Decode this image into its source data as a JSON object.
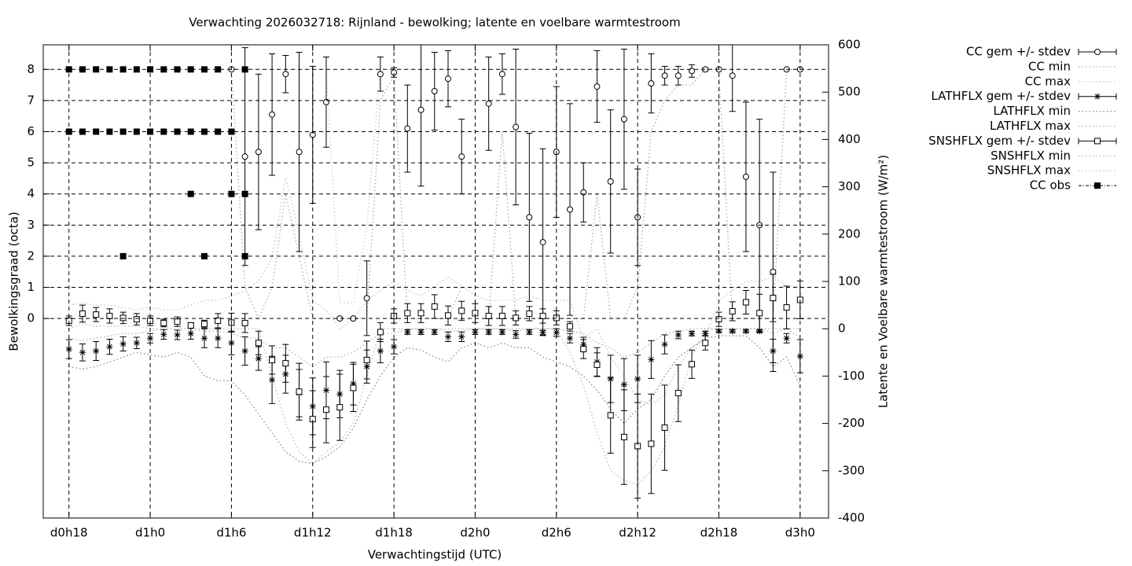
{
  "chart_data": {
    "type": "errorbar",
    "title": "Verwachting 2026032718: Rijnland - bewolking; latente en voelbare warmtestroom",
    "xlabel": "Verwachtingstijd (UTC)",
    "ylabel": "Bewolkingsgraad (octa)",
    "y2label": "Latente en Voelbare warmtestroom (W/m²)",
    "grid": true,
    "legend": "right",
    "xlim": [
      16.1,
      74.1
    ],
    "xticks": [
      {
        "value": 18,
        "label": "d0h18"
      },
      {
        "value": 24,
        "label": "d1h0"
      },
      {
        "value": 30,
        "label": "d1h6"
      },
      {
        "value": 36,
        "label": "d1h12"
      },
      {
        "value": 42,
        "label": "d1h18"
      },
      {
        "value": 48,
        "label": "d2h0"
      },
      {
        "value": 54,
        "label": "d2h6"
      },
      {
        "value": 60,
        "label": "d2h12"
      },
      {
        "value": 66,
        "label": "d2h18"
      },
      {
        "value": 72,
        "label": "d3h0"
      }
    ],
    "ylim": [
      -6.41,
      8.79
    ],
    "yticks": [
      0,
      1,
      2,
      3,
      4,
      5,
      6,
      7,
      8
    ],
    "y2lim": [
      -400,
      600
    ],
    "y2ticks": [
      -400,
      -300,
      -200,
      -100,
      0,
      100,
      200,
      300,
      400,
      500,
      600
    ],
    "x": [
      18,
      19,
      20,
      21,
      22,
      23,
      24,
      25,
      26,
      27,
      28,
      29,
      30,
      31,
      32,
      33,
      34,
      35,
      36,
      37,
      38,
      39,
      40,
      41,
      42,
      43,
      44,
      45,
      46,
      47,
      48,
      49,
      50,
      51,
      52,
      53,
      54,
      55,
      56,
      57,
      58,
      59,
      60,
      61,
      62,
      63,
      64,
      65,
      66,
      67,
      68,
      69,
      70,
      71,
      72
    ],
    "series": [
      {
        "name": "CC min",
        "style": "dotted",
        "color": "#aaaaaa",
        "values": [
          null,
          null,
          null,
          null,
          null,
          null,
          null,
          null,
          null,
          null,
          null,
          null,
          8,
          1,
          0,
          1,
          4,
          2,
          0,
          0,
          0,
          0,
          0,
          7,
          7.8,
          0,
          0,
          0,
          0,
          1,
          null,
          0,
          6,
          0,
          0,
          0,
          0,
          0,
          0,
          4,
          0,
          0,
          1,
          6,
          7,
          7.5,
          7.5,
          8,
          8,
          0,
          0,
          0,
          0,
          8,
          8
        ]
      },
      {
        "name": "CC max",
        "style": "dotted",
        "color": "#cccccc",
        "values": [
          null,
          null,
          null,
          null,
          null,
          null,
          null,
          null,
          null,
          null,
          null,
          null,
          8,
          8,
          8,
          8,
          8,
          8,
          8,
          8,
          0.5,
          0.5,
          3,
          8,
          8,
          8,
          8,
          8,
          8,
          8,
          null,
          8,
          8,
          8,
          8,
          8,
          8,
          8,
          8,
          8,
          8,
          8,
          8,
          8,
          8,
          8,
          8,
          8,
          8,
          8,
          8,
          8,
          8,
          8,
          8
        ]
      },
      {
        "name": "LATHFLX min",
        "style": "dotted",
        "color": "#888888",
        "axis": "y2",
        "values": [
          -80,
          -85,
          -80,
          -70,
          -60,
          -50,
          -55,
          -60,
          -50,
          -60,
          -100,
          -110,
          -110,
          -140,
          -180,
          -220,
          -260,
          -280,
          -285,
          -270,
          -250,
          -210,
          -150,
          -100,
          -60,
          -40,
          -45,
          -60,
          -70,
          -40,
          -30,
          -40,
          -30,
          -40,
          -40,
          -60,
          -70,
          -80,
          -100,
          -130,
          -170,
          -200,
          -170,
          -150,
          -100,
          -60,
          -40,
          -20,
          -15,
          -15,
          -15,
          -40,
          -80,
          -60,
          -120
        ]
      },
      {
        "name": "LATHFLX max",
        "style": "dotted",
        "color": "#b0b0b0",
        "axis": "y2",
        "values": [
          -20,
          -25,
          -20,
          -15,
          -10,
          -10,
          -5,
          0,
          0,
          0,
          -5,
          -5,
          -10,
          -20,
          -20,
          -40,
          -40,
          -60,
          -80,
          -60,
          -60,
          -50,
          -30,
          -10,
          -10,
          0,
          0,
          0,
          -5,
          -5,
          0,
          0,
          0,
          -5,
          0,
          0,
          0,
          -5,
          -10,
          -30,
          -40,
          -60,
          -50,
          -30,
          -10,
          -5,
          0,
          0,
          0,
          0,
          0,
          0,
          -10,
          0,
          -20
        ]
      },
      {
        "name": "SNSHFLX min",
        "style": "dotted",
        "color": "#bbbbbb",
        "axis": "y2",
        "values": [
          0,
          10,
          5,
          5,
          5,
          5,
          0,
          0,
          0,
          0,
          0,
          0,
          0,
          0,
          0,
          -100,
          -200,
          -260,
          -285,
          -260,
          -240,
          -200,
          -100,
          0,
          0,
          0,
          0,
          0,
          0,
          0,
          0,
          0,
          0,
          0,
          0,
          0,
          0,
          -50,
          -120,
          -220,
          -300,
          -320,
          -330,
          -300,
          -250,
          -160,
          -60,
          0,
          0,
          0,
          0,
          0,
          0,
          0,
          0
        ]
      },
      {
        "name": "SNSHFLX max",
        "style": "dotted",
        "color": "#c4c4c4",
        "axis": "y2",
        "values": [
          50,
          55,
          50,
          50,
          45,
          40,
          45,
          40,
          40,
          50,
          60,
          60,
          70,
          80,
          100,
          150,
          320,
          200,
          60,
          40,
          0,
          20,
          60,
          80,
          100,
          80,
          70,
          90,
          110,
          90,
          70,
          60,
          60,
          60,
          70,
          60,
          60,
          60,
          -20,
          0,
          -60,
          -100,
          -150,
          -160,
          -140,
          -80,
          -40,
          -20,
          60,
          80,
          100,
          100,
          110,
          90,
          90
        ]
      },
      {
        "name": "CC gem +/- stdev",
        "style": "errorbars",
        "marker": "circle",
        "color": "#000000",
        "values": [
          null,
          null,
          null,
          null,
          null,
          null,
          null,
          null,
          null,
          null,
          null,
          null,
          8,
          5.2,
          5.35,
          6.55,
          7.85,
          5.35,
          5.9,
          6.95,
          0,
          0,
          0.65,
          7.85,
          7.9,
          6.1,
          6.7,
          7.3,
          7.7,
          5.2,
          null,
          6.9,
          7.85,
          6.15,
          3.25,
          2.45,
          5.35,
          3.5,
          4.05,
          7.45,
          4.4,
          6.4,
          3.25,
          7.55,
          7.8,
          7.8,
          7.95,
          8,
          8,
          7.8,
          4.55,
          3.0,
          1.5,
          8,
          8
        ],
        "errors": [
          null,
          null,
          null,
          null,
          null,
          null,
          null,
          null,
          null,
          null,
          null,
          null,
          0,
          3.5,
          2.5,
          1.95,
          0.6,
          3.2,
          2.2,
          1.45,
          0,
          0,
          1.2,
          0.55,
          0.15,
          1.4,
          2.45,
          1.25,
          0.9,
          1.2,
          null,
          1.5,
          0.65,
          2.5,
          2.7,
          3.0,
          2.1,
          3.4,
          0.95,
          1.15,
          2.3,
          2.25,
          1.55,
          0.95,
          0.3,
          0.3,
          0.2,
          0.05,
          0,
          1.15,
          2.4,
          3.4,
          3.2,
          0,
          0
        ]
      },
      {
        "name": "LATHFLX gem +/- stdev",
        "style": "errorbars",
        "marker": "star",
        "color": "#000000",
        "axis": "y2",
        "values": [
          -43,
          -50,
          -47,
          -38,
          -32,
          -30,
          -20,
          -12,
          -13,
          -10,
          -20,
          -20,
          -30,
          -47,
          -63,
          -108,
          -96,
          -136,
          -164,
          -130,
          -138,
          -116,
          -80,
          -47,
          -38,
          -7,
          -7,
          -7,
          -17,
          -17,
          -7,
          -7,
          -7,
          -12,
          -7,
          -8,
          -8,
          -20,
          -33,
          -70,
          -106,
          -118,
          -106,
          -65,
          -33,
          -13,
          -10,
          -10,
          -5,
          -5,
          -5,
          -5,
          -47,
          -20,
          -58
        ],
        "errors": [
          20,
          18,
          20,
          16,
          15,
          12,
          10,
          10,
          10,
          12,
          20,
          20,
          25,
          30,
          25,
          50,
          40,
          50,
          60,
          60,
          50,
          45,
          35,
          25,
          15,
          5,
          5,
          5,
          10,
          10,
          5,
          5,
          5,
          8,
          5,
          5,
          8,
          10,
          15,
          30,
          50,
          55,
          50,
          40,
          20,
          8,
          5,
          5,
          3,
          3,
          3,
          3,
          25,
          10,
          35
        ]
      },
      {
        "name": "SNSHFLX gem +/- stdev",
        "style": "errorbars",
        "marker": "square",
        "color": "#000000",
        "axis": "y2",
        "values": [
          17,
          32,
          30,
          27,
          23,
          20,
          17,
          12,
          15,
          7,
          10,
          17,
          13,
          12,
          -30,
          -66,
          -73,
          -133,
          -191,
          -171,
          -166,
          -125,
          -66,
          -7,
          27,
          33,
          33,
          47,
          28,
          38,
          33,
          27,
          27,
          23,
          32,
          27,
          23,
          5,
          -43,
          -76,
          -183,
          -229,
          -248,
          -243,
          -209,
          -136,
          -75,
          -30,
          20,
          37,
          56,
          33,
          65,
          45,
          61
        ],
        "errors": [
          10,
          18,
          15,
          15,
          12,
          12,
          10,
          8,
          10,
          6,
          8,
          15,
          20,
          20,
          25,
          30,
          40,
          60,
          60,
          70,
          70,
          50,
          40,
          20,
          15,
          20,
          20,
          25,
          20,
          20,
          20,
          20,
          20,
          15,
          15,
          15,
          15,
          10,
          20,
          25,
          80,
          100,
          110,
          105,
          90,
          60,
          30,
          15,
          15,
          20,
          25,
          40,
          50,
          45,
          40
        ]
      },
      {
        "name": "CC obs",
        "style": "points",
        "marker": "filled-square",
        "color": "#000000",
        "x": [
          18,
          19,
          20,
          21,
          22,
          23,
          24,
          25,
          26,
          27,
          28,
          29,
          31,
          18,
          19,
          20,
          21,
          22,
          23,
          24,
          25,
          26,
          27,
          28,
          29,
          30,
          27,
          30,
          31,
          22,
          28,
          31
        ],
        "values": [
          8,
          8,
          8,
          8,
          8,
          8,
          8,
          8,
          8,
          8,
          8,
          8,
          8,
          6,
          6,
          6,
          6,
          6,
          6,
          6,
          6,
          6,
          6,
          6,
          6,
          6,
          4,
          4,
          4,
          2,
          2,
          2
        ]
      }
    ]
  }
}
